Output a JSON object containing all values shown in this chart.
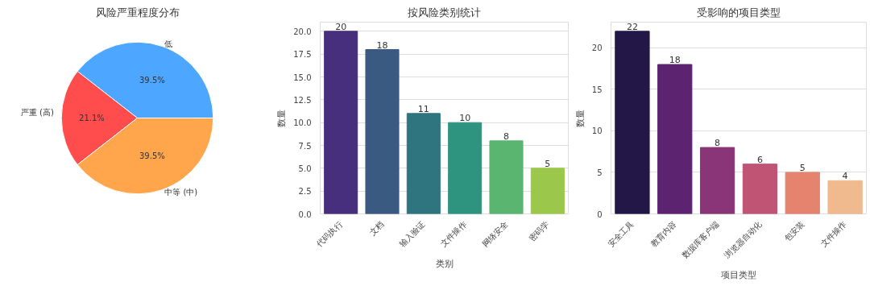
{
  "chart_data": [
    {
      "type": "pie",
      "title": "风险严重程度分布",
      "categories": [
        "低",
        "严重 (高)",
        "中等 (中)"
      ],
      "values": [
        39.5,
        21.1,
        39.5
      ],
      "colors": [
        "#4da6ff",
        "#ff4d4d",
        "#ffa64d"
      ],
      "value_labels": [
        "39.5%",
        "21.1%",
        "39.5%"
      ]
    },
    {
      "type": "bar",
      "title": "按风险类别统计",
      "xlabel": "类别",
      "ylabel": "数量",
      "categories": [
        "代码执行",
        "文档",
        "输入验证",
        "文件操作",
        "网络安全",
        "密码学"
      ],
      "values": [
        20,
        18,
        11,
        10,
        8,
        5
      ],
      "colors": [
        "#472f7d",
        "#3b5a82",
        "#2f7580",
        "#2e9480",
        "#5ab570",
        "#9bc84a"
      ],
      "ylim": [
        0,
        21
      ],
      "yticks": [
        {
          "value": 0,
          "label": "0.0"
        },
        {
          "value": 2.5,
          "label": "2.5"
        },
        {
          "value": 5,
          "label": "5.0"
        },
        {
          "value": 7.5,
          "label": "7.5"
        },
        {
          "value": 10,
          "label": "10.0"
        },
        {
          "value": 12.5,
          "label": "12.5"
        },
        {
          "value": 15,
          "label": "15.0"
        },
        {
          "value": 17.5,
          "label": "17.5"
        },
        {
          "value": 20,
          "label": "20.0"
        }
      ],
      "grid": "y",
      "data_labels": true
    },
    {
      "type": "bar",
      "title": "受影响的项目类型",
      "xlabel": "项目类型",
      "ylabel": "数量",
      "categories": [
        "安全工具",
        "教育内容",
        "数据库客户端",
        "浏览器自动化",
        "包安装",
        "文件操作"
      ],
      "values": [
        22,
        18,
        8,
        6,
        5,
        4
      ],
      "colors": [
        "#221747",
        "#5c2370",
        "#8a3577",
        "#c05474",
        "#e6836e",
        "#f0b98e"
      ],
      "ylim": [
        0,
        23.1
      ],
      "yticks": [
        0,
        5,
        10,
        15,
        20
      ],
      "grid": "y",
      "data_labels": true
    }
  ]
}
